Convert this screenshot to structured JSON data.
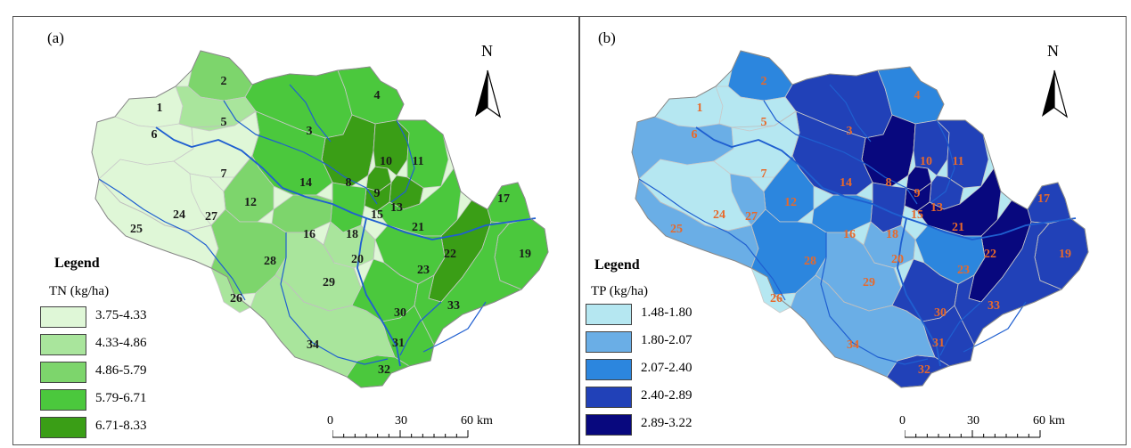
{
  "panels": [
    {
      "id": "a",
      "label": "(a)",
      "legend_title": "Legend",
      "variable": "TN (kg/ha)",
      "classes": [
        {
          "range": "3.75-4.33",
          "color": "#dff7d7"
        },
        {
          "range": "4.33-4.86",
          "color": "#a9e59c"
        },
        {
          "range": "4.86-5.79",
          "color": "#7dd56c"
        },
        {
          "range": "5.79-6.71",
          "color": "#4bc83d"
        },
        {
          "range": "6.71-8.33",
          "color": "#3a9e16"
        }
      ],
      "label_color": "#1a1a1a",
      "north": "N",
      "scale": {
        "ticks": [
          "0",
          "30",
          "60"
        ],
        "unit": "km"
      }
    },
    {
      "id": "b",
      "label": "(b)",
      "legend_title": "Legend",
      "variable": "TP (kg/ha)",
      "classes": [
        {
          "range": "1.48-1.80",
          "color": "#b5e7f1"
        },
        {
          "range": "1.80-2.07",
          "color": "#6aaee6"
        },
        {
          "range": "2.07-2.40",
          "color": "#2c86de"
        },
        {
          "range": "2.40-2.89",
          "color": "#2141b8"
        },
        {
          "range": "2.89-3.22",
          "color": "#08087e"
        }
      ],
      "label_color": "#e8692a",
      "north": "N",
      "scale": {
        "ticks": [
          "0",
          "30",
          "60"
        ],
        "unit": "km"
      }
    }
  ],
  "subbasins": [
    {
      "id": "1",
      "tn_class": 0,
      "tp_class": 0
    },
    {
      "id": "2",
      "tn_class": 2,
      "tp_class": 2
    },
    {
      "id": "3",
      "tn_class": 3,
      "tp_class": 3
    },
    {
      "id": "4",
      "tn_class": 3,
      "tp_class": 2
    },
    {
      "id": "5",
      "tn_class": 1,
      "tp_class": 0
    },
    {
      "id": "6",
      "tn_class": 0,
      "tp_class": 1
    },
    {
      "id": "7",
      "tn_class": 0,
      "tp_class": 0
    },
    {
      "id": "8",
      "tn_class": 4,
      "tp_class": 4
    },
    {
      "id": "9",
      "tn_class": 4,
      "tp_class": 4
    },
    {
      "id": "10",
      "tn_class": 4,
      "tp_class": 3
    },
    {
      "id": "11",
      "tn_class": 3,
      "tp_class": 3
    },
    {
      "id": "12",
      "tn_class": 2,
      "tp_class": 2
    },
    {
      "id": "13",
      "tn_class": 4,
      "tp_class": 3
    },
    {
      "id": "14",
      "tn_class": 3,
      "tp_class": 3
    },
    {
      "id": "15",
      "tn_class": 4,
      "tp_class": 4
    },
    {
      "id": "16",
      "tn_class": 2,
      "tp_class": 2
    },
    {
      "id": "17",
      "tn_class": 3,
      "tp_class": 3
    },
    {
      "id": "18",
      "tn_class": 3,
      "tp_class": 3
    },
    {
      "id": "19",
      "tn_class": 3,
      "tp_class": 3
    },
    {
      "id": "20",
      "tn_class": 1,
      "tp_class": 1
    },
    {
      "id": "21",
      "tn_class": 3,
      "tp_class": 4
    },
    {
      "id": "22",
      "tn_class": 4,
      "tp_class": 4
    },
    {
      "id": "23",
      "tn_class": 3,
      "tp_class": 2
    },
    {
      "id": "24",
      "tn_class": 0,
      "tp_class": 0
    },
    {
      "id": "25",
      "tn_class": 0,
      "tp_class": 1
    },
    {
      "id": "26",
      "tn_class": 1,
      "tp_class": 0
    },
    {
      "id": "27",
      "tn_class": 0,
      "tp_class": 1
    },
    {
      "id": "28",
      "tn_class": 2,
      "tp_class": 2
    },
    {
      "id": "29",
      "tn_class": 1,
      "tp_class": 1
    },
    {
      "id": "30",
      "tn_class": 3,
      "tp_class": 3
    },
    {
      "id": "31",
      "tn_class": 3,
      "tp_class": 3
    },
    {
      "id": "32",
      "tn_class": 3,
      "tp_class": 3
    },
    {
      "id": "33",
      "tn_class": 3,
      "tp_class": 3
    },
    {
      "id": "34",
      "tn_class": 1,
      "tp_class": 1
    }
  ]
}
